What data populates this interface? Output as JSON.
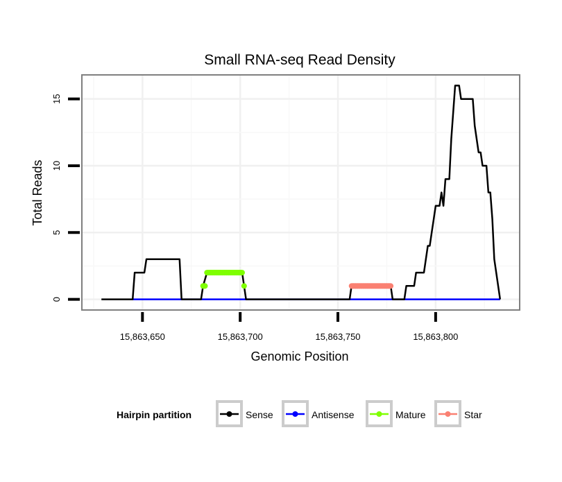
{
  "chart_data": {
    "type": "line",
    "title": "Small RNA-seq Read Density",
    "xlabel": "Genomic Position",
    "ylabel": "Total Reads",
    "xlim": [
      15863619,
      15863843
    ],
    "ylim": [
      -0.8,
      16.8
    ],
    "x_ticks": [
      15863650,
      15863700,
      15863750,
      15863800
    ],
    "x_tick_labels": [
      "15,863,650",
      "15,863,700",
      "15,863,750",
      "15,863,800"
    ],
    "y_ticks": [
      0,
      5,
      10,
      15
    ],
    "y_tick_labels": [
      "0",
      "5",
      "10",
      "15"
    ],
    "grid": true,
    "legend": {
      "title": "Hairpin partition",
      "placement": "bottom",
      "entries": [
        "Sense",
        "Antisense",
        "Mature",
        "Star"
      ]
    },
    "series": [
      {
        "name": "Antisense",
        "color": "#0000ff",
        "style": "line",
        "points": [
          [
            15863645,
            0
          ],
          [
            15863833,
            0
          ]
        ]
      },
      {
        "name": "Sense",
        "color": "#000000",
        "style": "line",
        "points": [
          [
            15863629,
            0
          ],
          [
            15863645,
            0
          ],
          [
            15863646,
            2
          ],
          [
            15863651,
            2
          ],
          [
            15863652,
            3
          ],
          [
            15863669,
            3
          ],
          [
            15863670,
            0
          ],
          [
            15863680,
            0
          ],
          [
            15863681,
            1
          ],
          [
            15863683,
            2
          ],
          [
            15863701,
            2
          ],
          [
            15863702,
            1
          ],
          [
            15863703,
            0
          ],
          [
            15863756,
            0
          ],
          [
            15863757,
            1
          ],
          [
            15863777,
            1
          ],
          [
            15863778,
            0
          ],
          [
            15863784,
            0
          ],
          [
            15863785,
            1
          ],
          [
            15863789,
            1
          ],
          [
            15863790,
            2
          ],
          [
            15863794,
            2
          ],
          [
            15863795,
            3
          ],
          [
            15863796,
            4
          ],
          [
            15863797,
            4
          ],
          [
            15863798,
            5
          ],
          [
            15863799,
            6
          ],
          [
            15863800,
            7
          ],
          [
            15863802,
            7
          ],
          [
            15863803,
            8
          ],
          [
            15863804,
            7
          ],
          [
            15863805,
            9
          ],
          [
            15863807,
            9
          ],
          [
            15863808,
            12
          ],
          [
            15863810,
            16
          ],
          [
            15863812,
            16
          ],
          [
            15863813,
            15
          ],
          [
            15863819,
            15
          ],
          [
            15863820,
            13
          ],
          [
            15863822,
            11
          ],
          [
            15863823,
            11
          ],
          [
            15863824,
            10
          ],
          [
            15863826,
            10
          ],
          [
            15863827,
            8
          ],
          [
            15863828,
            8
          ],
          [
            15863829,
            6
          ],
          [
            15863830,
            3
          ],
          [
            15863833,
            0
          ]
        ]
      },
      {
        "name": "Mature",
        "color": "#7fff00",
        "style": "points",
        "points": [
          [
            15863681,
            1
          ],
          [
            15863682,
            1
          ],
          [
            15863683,
            2
          ],
          [
            15863684,
            2
          ],
          [
            15863685,
            2
          ],
          [
            15863686,
            2
          ],
          [
            15863687,
            2
          ],
          [
            15863688,
            2
          ],
          [
            15863689,
            2
          ],
          [
            15863690,
            2
          ],
          [
            15863691,
            2
          ],
          [
            15863692,
            2
          ],
          [
            15863693,
            2
          ],
          [
            15863694,
            2
          ],
          [
            15863695,
            2
          ],
          [
            15863696,
            2
          ],
          [
            15863697,
            2
          ],
          [
            15863698,
            2
          ],
          [
            15863699,
            2
          ],
          [
            15863700,
            2
          ],
          [
            15863701,
            2
          ],
          [
            15863702,
            1
          ]
        ]
      },
      {
        "name": "Star",
        "color": "#fa8072",
        "style": "points",
        "points": [
          [
            15863757,
            1
          ],
          [
            15863758,
            1
          ],
          [
            15863759,
            1
          ],
          [
            15863760,
            1
          ],
          [
            15863761,
            1
          ],
          [
            15863762,
            1
          ],
          [
            15863763,
            1
          ],
          [
            15863764,
            1
          ],
          [
            15863765,
            1
          ],
          [
            15863766,
            1
          ],
          [
            15863767,
            1
          ],
          [
            15863768,
            1
          ],
          [
            15863769,
            1
          ],
          [
            15863770,
            1
          ],
          [
            15863771,
            1
          ],
          [
            15863772,
            1
          ],
          [
            15863773,
            1
          ],
          [
            15863774,
            1
          ],
          [
            15863775,
            1
          ],
          [
            15863776,
            1
          ],
          [
            15863777,
            1
          ]
        ]
      }
    ]
  }
}
